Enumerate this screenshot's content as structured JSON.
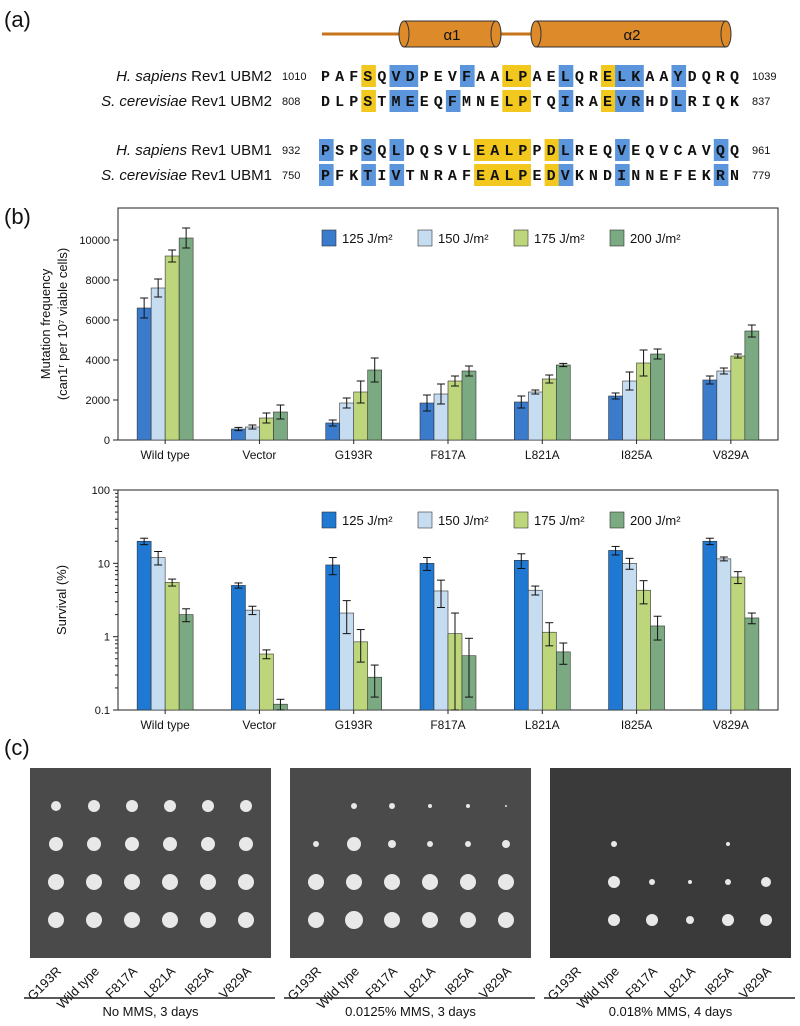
{
  "panels": {
    "a": "(a)",
    "b": "(b)",
    "c": "(c)"
  },
  "alignment": {
    "helices": [
      "α1",
      "α2"
    ],
    "rows": [
      {
        "species": "H. sapiens",
        "protein": "Rev1 UBM2",
        "start": 1010,
        "sequence": "PAFSQVDPEVFAALPAELQRELKAAYDQRQ",
        "end": 1039
      },
      {
        "species": "S. cerevisiae",
        "protein": "Rev1 UBM2",
        "start": 808,
        "sequence": "DLPSTMEEQFMNELPTQIRAEVRHDLRIQK",
        "end": 837
      },
      {
        "species": "H. sapiens",
        "protein": "Rev1 UBM1",
        "start": 932,
        "sequence": "PSPSQLDQSVLEALPPDLREQVEQVCAVQQ",
        "end": 961
      },
      {
        "species": "S. cerevisiae",
        "protein": "Rev1 UBM1",
        "start": 750,
        "sequence": "PFKTIVTNRAFEALPEDVKNDINNEFEKRN",
        "end": 779
      }
    ]
  },
  "chart_data": [
    {
      "type": "bar",
      "ylabel": [
        "Mutation frequency",
        "(can1ʳ per 10⁷ viable cells)"
      ],
      "categories": [
        "Wild type",
        "Vector",
        "G193R",
        "F817A",
        "L821A",
        "I825A",
        "V829A"
      ],
      "series": [
        {
          "name": "125 J/m²",
          "color": "#3b7bcc",
          "values": [
            6600,
            550,
            850,
            1850,
            1900,
            2200,
            3000
          ],
          "errors": [
            500,
            80,
            150,
            400,
            300,
            150,
            200
          ]
        },
        {
          "name": "150 J/m²",
          "color": "#c6dcf0",
          "values": [
            7600,
            650,
            1850,
            2300,
            2400,
            2950,
            3450
          ],
          "errors": [
            450,
            100,
            250,
            500,
            100,
            450,
            150
          ]
        },
        {
          "name": "175 J/m²",
          "color": "#bdd67b",
          "values": [
            9200,
            1100,
            2400,
            2950,
            3050,
            3850,
            4200
          ],
          "errors": [
            300,
            250,
            550,
            250,
            200,
            650,
            100
          ]
        },
        {
          "name": "200 J/m²",
          "color": "#7ba981",
          "values": [
            10100,
            1400,
            3500,
            3450,
            3750,
            4300,
            5450
          ],
          "errors": [
            500,
            350,
            600,
            250,
            80,
            250,
            300
          ]
        }
      ],
      "ylim": [
        0,
        11600
      ],
      "yticks": [
        0,
        2000,
        4000,
        6000,
        8000,
        10000
      ],
      "log_scale": false
    },
    {
      "type": "bar",
      "ylabel": [
        "Survival (%)"
      ],
      "categories": [
        "Wild type",
        "Vector",
        "G193R",
        "F817A",
        "L821A",
        "I825A",
        "V829A"
      ],
      "series": [
        {
          "name": "125 J/m²",
          "color": "#1f78d1",
          "values": [
            20,
            5.0,
            9.5,
            10,
            11,
            15,
            20
          ],
          "errors": [
            2,
            0.4,
            2.5,
            2,
            2.5,
            2,
            2
          ]
        },
        {
          "name": "150 J/m²",
          "color": "#c6dcf0",
          "values": [
            12,
            2.3,
            2.1,
            4.2,
            4.3,
            10,
            11.5
          ],
          "errors": [
            2.5,
            0.3,
            1,
            1.7,
            0.6,
            1.7,
            0.7
          ]
        },
        {
          "name": "175 J/m²",
          "color": "#bdd67b",
          "values": [
            5.5,
            0.58,
            0.85,
            1.1,
            1.15,
            4.3,
            6.5
          ],
          "errors": [
            0.6,
            0.08,
            0.4,
            1,
            0.4,
            1.5,
            1.2
          ]
        },
        {
          "name": "200 J/m²",
          "color": "#7ba981",
          "values": [
            2.0,
            0.12,
            0.28,
            0.55,
            0.62,
            1.4,
            1.8
          ],
          "errors": [
            0.4,
            0.02,
            0.13,
            0.4,
            0.2,
            0.5,
            0.3
          ]
        }
      ],
      "ylim": [
        0.1,
        100
      ],
      "yticks": [
        0.1,
        1,
        10,
        100
      ],
      "log_scale": true
    }
  ],
  "plates": [
    {
      "strains": [
        "G193R",
        "Wild type",
        "F817A",
        "L821A",
        "I825A",
        "V829A"
      ],
      "caption": "No MMS, 3 days"
    },
    {
      "strains": [
        "G193R",
        "Wild type",
        "F817A",
        "L821A",
        "I825A",
        "V829A"
      ],
      "caption": "0.0125% MMS, 3 days"
    },
    {
      "strains": [
        "G193R",
        "Wild type",
        "F817A",
        "L821A",
        "I825A",
        "V829A"
      ],
      "caption": "0.018% MMS, 4 days"
    }
  ]
}
